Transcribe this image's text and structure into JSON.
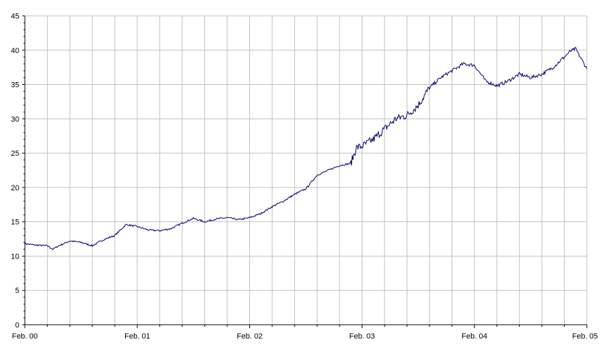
{
  "chart_data": {
    "type": "line",
    "title": "",
    "xlabel": "",
    "ylabel": "",
    "ylim": [
      0,
      45
    ],
    "yticks": [
      0,
      5,
      10,
      15,
      20,
      25,
      30,
      35,
      40,
      45
    ],
    "xlim": [
      "Feb. 00",
      "Feb. 05"
    ],
    "xtick_labels": [
      "Feb. 00",
      "Feb. 01",
      "Feb. 02",
      "Feb. 03",
      "Feb. 04",
      "Feb. 05"
    ],
    "grid": true,
    "legend": "none",
    "colors": {
      "line": "#000066",
      "grid": "#c0c0c0",
      "axis": "#000000"
    },
    "series": [
      {
        "x": [
          0.0,
          0.1,
          0.2,
          0.25,
          0.3,
          0.4,
          0.5,
          0.6,
          0.7,
          0.8,
          0.9,
          1.0,
          1.1,
          1.2,
          1.3,
          1.4,
          1.5,
          1.6,
          1.7,
          1.8,
          1.9,
          2.0,
          2.1,
          2.2,
          2.3,
          2.4,
          2.5,
          2.6,
          2.7,
          2.8,
          2.9,
          2.95,
          3.0,
          3.1,
          3.2,
          3.3,
          3.4,
          3.5,
          3.6,
          3.7,
          3.8,
          3.9,
          4.0,
          4.1,
          4.2,
          4.3,
          4.4,
          4.5,
          4.6,
          4.7,
          4.8,
          4.85,
          4.9,
          5.0
        ],
        "y": [
          11.8,
          11.6,
          11.5,
          11.0,
          11.5,
          12.2,
          12.0,
          11.5,
          12.4,
          13.0,
          14.6,
          14.3,
          13.8,
          13.7,
          14.0,
          14.8,
          15.5,
          15.0,
          15.4,
          15.6,
          15.3,
          15.6,
          16.2,
          17.2,
          18.0,
          19.0,
          19.8,
          21.8,
          22.5,
          23.2,
          23.5,
          25.8,
          26.0,
          27.0,
          28.5,
          30.0,
          30.5,
          32.0,
          34.5,
          36.0,
          37.0,
          38.0,
          37.8,
          35.5,
          34.8,
          35.5,
          36.5,
          36.0,
          36.5,
          37.5,
          39.0,
          39.8,
          40.2,
          37.3
        ]
      }
    ]
  }
}
